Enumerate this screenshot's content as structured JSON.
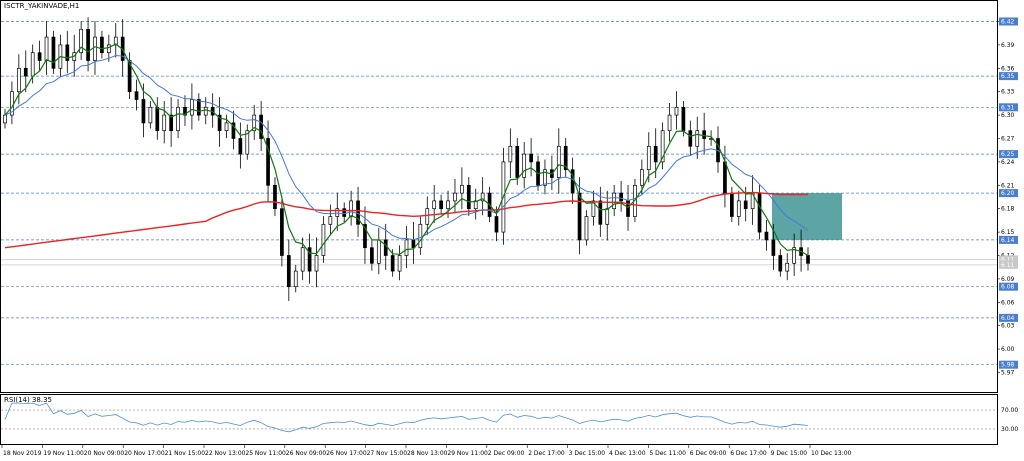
{
  "chart_data": {
    "type": "candlestick",
    "title": "ISCTR_YAKINVADE,H1",
    "ylim": [
      5.945,
      6.445
    ],
    "y_ticks": [
      6.42,
      6.39,
      6.36,
      6.33,
      6.3,
      6.27,
      6.24,
      6.21,
      6.18,
      6.15,
      6.12,
      6.09,
      6.06,
      6.03,
      6.0,
      5.97
    ],
    "y_tick_labels": [
      "6.42",
      "6.39",
      "6.36",
      "6.33",
      "6.30",
      "6.27",
      "6.24",
      "6.21",
      "6.18",
      "6.15",
      "6.12",
      "6.09",
      "6.06",
      "6.03",
      "6.00",
      "5.97"
    ],
    "price_levels": [
      6.42,
      6.35,
      6.31,
      6.25,
      6.2,
      6.14,
      6.08,
      6.04,
      5.98
    ],
    "price_level_labels": [
      "6.42",
      "6.35",
      "6.31",
      "6.25",
      "6.20",
      "6.14",
      "6.08",
      "6.04",
      "5.98"
    ],
    "current_price_labels": [
      "6.11",
      "6.11"
    ],
    "x_labels": [
      "18 Nov 2019",
      "19 Nov 11:00",
      "20 Nov 09:00",
      "20 Nov 17:00",
      "21 Nov 15:00",
      "22 Nov 13:00",
      "25 Nov 11:00",
      "26 Nov 09:00",
      "26 Nov 17:00",
      "27 Nov 15:00",
      "28 Nov 13:00",
      "29 Nov 11:00",
      "2 Dec 09:00",
      "2 Dec 17:00",
      "3 Dec 15:00",
      "4 Dec 13:00",
      "5 Dec 11:00",
      "6 Dec 09:00",
      "6 Dec 17:00",
      "9 Dec 15:00",
      "10 Dec 13:00"
    ],
    "close_series": [
      6.3,
      6.33,
      6.36,
      6.35,
      6.38,
      6.37,
      6.4,
      6.36,
      6.39,
      6.37,
      6.38,
      6.41,
      6.37,
      6.4,
      6.38,
      6.39,
      6.4,
      6.37,
      6.33,
      6.32,
      6.29,
      6.31,
      6.28,
      6.3,
      6.28,
      6.31,
      6.3,
      6.32,
      6.3,
      6.31,
      6.3,
      6.28,
      6.29,
      6.27,
      6.25,
      6.28,
      6.3,
      6.27,
      6.21,
      6.18,
      6.12,
      6.08,
      6.1,
      6.13,
      6.1,
      6.12,
      6.16,
      6.17,
      6.18,
      6.17,
      6.19,
      6.16,
      6.13,
      6.11,
      6.14,
      6.12,
      6.1,
      6.12,
      6.14,
      6.13,
      6.16,
      6.18,
      6.19,
      6.18,
      6.19,
      6.2,
      6.21,
      6.18,
      6.19,
      6.2,
      6.17,
      6.15,
      6.24,
      6.26,
      6.22,
      6.25,
      6.24,
      6.21,
      6.23,
      6.22,
      6.26,
      6.23,
      6.2,
      6.14,
      6.17,
      6.19,
      6.16,
      6.18,
      6.2,
      6.19,
      6.17,
      6.21,
      6.23,
      6.26,
      6.24,
      6.28,
      6.3,
      6.31,
      6.28,
      6.26,
      6.28,
      6.27,
      6.27,
      6.24,
      6.2,
      6.17,
      6.19,
      6.18,
      6.2,
      6.15,
      6.14,
      6.12,
      6.1,
      6.11,
      6.13,
      6.12,
      6.11
    ],
    "series": [
      {
        "name": "MA fast",
        "color": "#117711"
      },
      {
        "name": "MA medium",
        "color": "#4477dd"
      },
      {
        "name": "MA slow",
        "color": "#ee2222"
      }
    ],
    "zone": {
      "y_top": 6.2,
      "y_bottom": 6.14,
      "color": "#2f8a8a"
    },
    "indicator": {
      "name": "RSI(14) 38.35",
      "levels": [
        70.0,
        30.0
      ],
      "level_labels": [
        "70.00",
        "30.00"
      ],
      "ylim": [
        0,
        100
      ],
      "color": "#4a90d9"
    }
  }
}
